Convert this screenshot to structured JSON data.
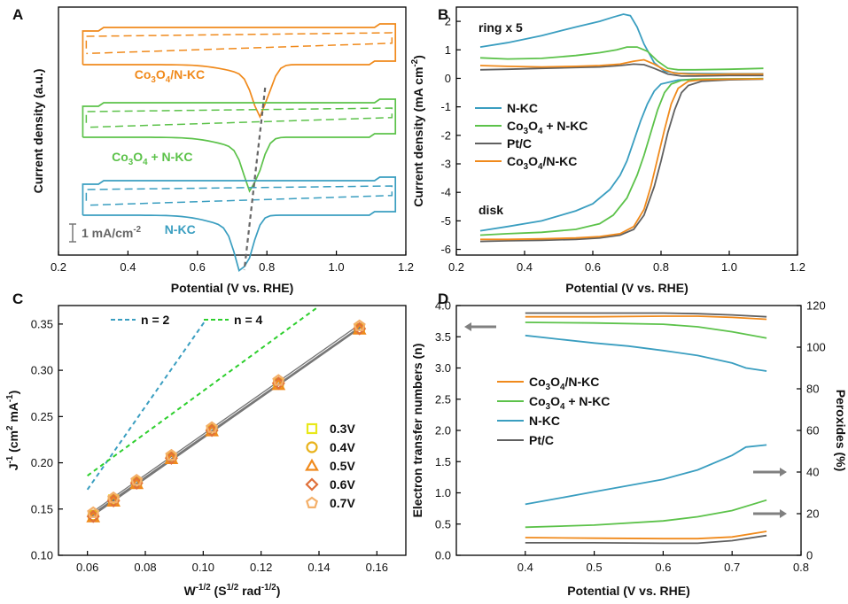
{
  "figure": {
    "panels": {
      "A": {
        "letter": "A"
      },
      "B": {
        "letter": "B"
      },
      "C": {
        "letter": "C"
      },
      "D": {
        "letter": "D"
      }
    }
  },
  "chart_data": [
    {
      "panel": "A",
      "type": "line",
      "title": "",
      "xlabel": "Potential (V vs. RHE)",
      "ylabel": "Current density (a.u.)",
      "xlim": [
        0.2,
        1.2
      ],
      "xticks": [
        "0.2",
        "0.4",
        "0.6",
        "0.8",
        "1.0",
        "1.2"
      ],
      "scale_bar": "1 mA/cm-2",
      "colors": {
        "Co3O4/N-KC": "#f08a1c",
        "Co3O4 + N-KC": "#5cc24a",
        "N-KC": "#3a9ec0",
        "guide": "#666666"
      },
      "series": [
        {
          "name": "Co3O4/N-KC",
          "label": "Co3O4/N-KC",
          "solid_min": {
            "x": 0.785,
            "y": -0.75
          },
          "dashed_baseline": 0.12
        },
        {
          "name": "Co3O4 + N-KC",
          "label": "Co3O4 + N-KC",
          "solid_min": {
            "x": 0.76,
            "y": -0.9
          },
          "dashed_baseline": 0.05
        },
        {
          "name": "N-KC",
          "label": "N-KC",
          "solid_min": {
            "x": 0.735,
            "y": -0.95
          },
          "dashed_baseline": 0.1
        }
      ]
    },
    {
      "panel": "B",
      "type": "line",
      "xlabel": "Potential (V vs. RHE)",
      "ylabel": "Current density (mA cm-2)",
      "xlim": [
        0.2,
        1.2
      ],
      "ylim": [
        -6.2,
        2.5
      ],
      "xticks": [
        "0.2",
        "0.4",
        "0.6",
        "0.8",
        "1.0",
        "1.2"
      ],
      "yticks": [
        "-6",
        "-5",
        "-4",
        "-3",
        "-2",
        "-1",
        "0",
        "1",
        "2"
      ],
      "annotations": {
        "ring": "ring x 5",
        "disk": "disk"
      },
      "legend": [
        "N-KC",
        "Co3O4 + N-KC",
        "Pt/C",
        "Co3O4/N-KC"
      ],
      "colors": {
        "N-KC": "#3a9ec0",
        "Co3O4 + N-KC": "#5cc24a",
        "Pt/C": "#606060",
        "Co3O4/N-KC": "#f08a1c"
      },
      "disk": [
        {
          "name": "N-KC",
          "x": [
            0.27,
            0.35,
            0.45,
            0.55,
            0.6,
            0.65,
            0.68,
            0.7,
            0.72,
            0.74,
            0.76,
            0.78,
            0.8,
            0.85,
            0.9,
            1.0,
            1.1
          ],
          "y": [
            -5.35,
            -5.2,
            -5.0,
            -4.65,
            -4.4,
            -3.9,
            -3.4,
            -2.9,
            -2.2,
            -1.5,
            -0.9,
            -0.45,
            -0.2,
            -0.06,
            -0.03,
            -0.02,
            -0.01
          ]
        },
        {
          "name": "Co3O4 + N-KC",
          "x": [
            0.27,
            0.35,
            0.45,
            0.55,
            0.62,
            0.66,
            0.7,
            0.73,
            0.75,
            0.77,
            0.79,
            0.81,
            0.83,
            0.86,
            0.9,
            1.0,
            1.1
          ],
          "y": [
            -5.5,
            -5.45,
            -5.4,
            -5.3,
            -5.1,
            -4.8,
            -4.2,
            -3.4,
            -2.7,
            -1.9,
            -1.1,
            -0.5,
            -0.2,
            -0.07,
            -0.03,
            -0.02,
            -0.01
          ]
        },
        {
          "name": "Pt/C",
          "x": [
            0.27,
            0.35,
            0.45,
            0.55,
            0.62,
            0.68,
            0.72,
            0.75,
            0.78,
            0.8,
            0.82,
            0.84,
            0.86,
            0.88,
            0.92,
            1.0,
            1.1
          ],
          "y": [
            -5.72,
            -5.7,
            -5.68,
            -5.65,
            -5.6,
            -5.5,
            -5.3,
            -4.8,
            -3.8,
            -2.9,
            -1.9,
            -1.1,
            -0.5,
            -0.25,
            -0.1,
            -0.05,
            -0.03
          ]
        },
        {
          "name": "Co3O4/N-KC",
          "x": [
            0.27,
            0.35,
            0.45,
            0.55,
            0.62,
            0.68,
            0.72,
            0.75,
            0.77,
            0.79,
            0.81,
            0.83,
            0.85,
            0.88,
            0.92,
            1.0,
            1.1
          ],
          "y": [
            -5.65,
            -5.65,
            -5.63,
            -5.6,
            -5.55,
            -5.45,
            -5.2,
            -4.6,
            -3.8,
            -2.8,
            -1.8,
            -0.9,
            -0.35,
            -0.1,
            -0.05,
            -0.03,
            -0.02
          ]
        }
      ],
      "ring": [
        {
          "name": "N-KC",
          "x": [
            0.27,
            0.35,
            0.45,
            0.55,
            0.62,
            0.66,
            0.69,
            0.71,
            0.73,
            0.75,
            0.78,
            0.81,
            0.85,
            0.9,
            1.0,
            1.1
          ],
          "y": [
            1.1,
            1.25,
            1.5,
            1.8,
            2.0,
            2.15,
            2.25,
            2.2,
            1.8,
            1.2,
            0.55,
            0.25,
            0.18,
            0.17,
            0.16,
            0.16
          ]
        },
        {
          "name": "Co3O4 + N-KC",
          "x": [
            0.27,
            0.35,
            0.45,
            0.55,
            0.62,
            0.67,
            0.7,
            0.73,
            0.76,
            0.79,
            0.82,
            0.85,
            0.9,
            1.0,
            1.1
          ],
          "y": [
            0.72,
            0.68,
            0.7,
            0.8,
            0.9,
            1.0,
            1.1,
            1.1,
            0.95,
            0.6,
            0.35,
            0.3,
            0.3,
            0.32,
            0.35
          ]
        },
        {
          "name": "Pt/C",
          "x": [
            0.27,
            0.35,
            0.45,
            0.55,
            0.62,
            0.68,
            0.72,
            0.75,
            0.78,
            0.82,
            0.86,
            0.9,
            1.0,
            1.1
          ],
          "y": [
            0.3,
            0.32,
            0.35,
            0.38,
            0.4,
            0.45,
            0.5,
            0.48,
            0.35,
            0.15,
            0.08,
            0.08,
            0.1,
            0.1
          ]
        },
        {
          "name": "Co3O4/N-KC",
          "x": [
            0.27,
            0.35,
            0.45,
            0.55,
            0.62,
            0.68,
            0.72,
            0.75,
            0.78,
            0.81,
            0.84,
            0.88,
            0.95,
            1.0,
            1.1
          ],
          "y": [
            0.45,
            0.42,
            0.4,
            0.42,
            0.45,
            0.5,
            0.6,
            0.65,
            0.5,
            0.3,
            0.18,
            0.15,
            0.14,
            0.15,
            0.15
          ]
        }
      ]
    },
    {
      "panel": "C",
      "type": "scatter",
      "xlabel": "W-1/2 (S1/2 rad-1/2)",
      "ylabel": "J-1 (cm2 mA-1)",
      "xlim": [
        0.05,
        0.17
      ],
      "ylim": [
        0.1,
        0.37
      ],
      "xticks": [
        "0.06",
        "0.08",
        "0.10",
        "0.12",
        "0.14",
        "0.16"
      ],
      "yticks": [
        "0.10",
        "0.15",
        "0.20",
        "0.25",
        "0.30",
        "0.35"
      ],
      "reference_lines": [
        {
          "name": "n = 2",
          "color": "#3a9ec0",
          "x": [
            0.06,
            0.101
          ],
          "y": [
            0.171,
            0.355
          ]
        },
        {
          "name": "n = 4",
          "color": "#2ecf2e",
          "x": [
            0.06,
            0.139
          ],
          "y": [
            0.186,
            0.367
          ]
        }
      ],
      "series": [
        {
          "name": "0.3V",
          "marker": "square",
          "color": "#e8e81a",
          "x": [
            0.062,
            0.069,
            0.077,
            0.089,
            0.103,
            0.126,
            0.154
          ],
          "y": [
            0.143,
            0.16,
            0.178,
            0.205,
            0.235,
            0.285,
            0.345
          ]
        },
        {
          "name": "0.4V",
          "marker": "circle",
          "color": "#e8b21a",
          "x": [
            0.062,
            0.069,
            0.077,
            0.089,
            0.103,
            0.126,
            0.154
          ],
          "y": [
            0.143,
            0.16,
            0.179,
            0.206,
            0.236,
            0.286,
            0.345
          ]
        },
        {
          "name": "0.5V",
          "marker": "triangle",
          "color": "#f08a1c",
          "x": [
            0.062,
            0.069,
            0.077,
            0.089,
            0.103,
            0.126,
            0.154
          ],
          "y": [
            0.141,
            0.158,
            0.177,
            0.204,
            0.234,
            0.284,
            0.344
          ]
        },
        {
          "name": "0.6V",
          "marker": "diamond",
          "color": "#e0703a",
          "x": [
            0.062,
            0.069,
            0.077,
            0.089,
            0.103,
            0.126,
            0.154
          ],
          "y": [
            0.142,
            0.159,
            0.178,
            0.205,
            0.235,
            0.286,
            0.345
          ]
        },
        {
          "name": "0.7V",
          "marker": "pentagon",
          "color": "#f4b06a",
          "x": [
            0.062,
            0.069,
            0.077,
            0.089,
            0.103,
            0.126,
            0.154
          ],
          "y": [
            0.146,
            0.162,
            0.181,
            0.208,
            0.238,
            0.289,
            0.348
          ]
        }
      ]
    },
    {
      "panel": "D",
      "type": "line",
      "xlabel": "Potential (V vs. RHE)",
      "ylabel": "Electron transfer numbers (n)",
      "ylabel_right": "Peroxides (%)",
      "xlim": [
        0.3,
        0.8
      ],
      "ylim": [
        0.0,
        4.0
      ],
      "ylim_right": [
        0,
        120
      ],
      "xticks": [
        "0.4",
        "0.5",
        "0.6",
        "0.7",
        "0.8"
      ],
      "yticks": [
        "0.0",
        "0.5",
        "1.0",
        "1.5",
        "2.0",
        "2.5",
        "3.0",
        "3.5",
        "4.0"
      ],
      "yticks_right": [
        "0",
        "20",
        "40",
        "60",
        "80",
        "100",
        "120"
      ],
      "legend": [
        "Co3O4/N-KC",
        "Co3O4 + N-KC",
        "N-KC",
        "Pt/C"
      ],
      "colors": {
        "Co3O4/N-KC": "#f08a1c",
        "Co3O4 + N-KC": "#5cc24a",
        "N-KC": "#3a9ec0",
        "Pt/C": "#606060",
        "arrow": "#808080"
      },
      "series_n": [
        {
          "name": "Co3O4/N-KC",
          "x": [
            0.4,
            0.5,
            0.6,
            0.65,
            0.7,
            0.75
          ],
          "y": [
            3.82,
            3.82,
            3.83,
            3.83,
            3.81,
            3.78
          ]
        },
        {
          "name": "Co3O4 + N-KC",
          "x": [
            0.4,
            0.5,
            0.6,
            0.65,
            0.7,
            0.75
          ],
          "y": [
            3.73,
            3.72,
            3.7,
            3.66,
            3.58,
            3.48
          ]
        },
        {
          "name": "N-KC",
          "x": [
            0.4,
            0.45,
            0.5,
            0.55,
            0.6,
            0.65,
            0.7,
            0.72,
            0.75
          ],
          "y": [
            3.52,
            3.46,
            3.4,
            3.35,
            3.28,
            3.2,
            3.08,
            3.0,
            2.95
          ]
        },
        {
          "name": "Pt/C",
          "x": [
            0.4,
            0.5,
            0.6,
            0.65,
            0.7,
            0.75
          ],
          "y": [
            3.88,
            3.88,
            3.88,
            3.87,
            3.85,
            3.82
          ]
        }
      ],
      "series_peroxide": [
        {
          "name": "Co3O4/N-KC",
          "x": [
            0.4,
            0.5,
            0.6,
            0.65,
            0.7,
            0.75
          ],
          "y": [
            8.5,
            8.2,
            8.0,
            8.0,
            8.8,
            11.5
          ]
        },
        {
          "name": "Co3O4 + N-KC",
          "x": [
            0.4,
            0.5,
            0.6,
            0.65,
            0.7,
            0.75
          ],
          "y": [
            13.5,
            14.5,
            16.5,
            18.5,
            21.5,
            26.5
          ]
        },
        {
          "name": "N-KC",
          "x": [
            0.4,
            0.45,
            0.5,
            0.55,
            0.6,
            0.65,
            0.7,
            0.72,
            0.75
          ],
          "y": [
            24.5,
            27.5,
            30.5,
            33.5,
            36.5,
            41,
            48,
            52,
            53
          ]
        },
        {
          "name": "Pt/C",
          "x": [
            0.4,
            0.5,
            0.6,
            0.65,
            0.7,
            0.75
          ],
          "y": [
            6.0,
            6.0,
            5.8,
            5.8,
            7.0,
            9.5
          ]
        }
      ]
    }
  ]
}
